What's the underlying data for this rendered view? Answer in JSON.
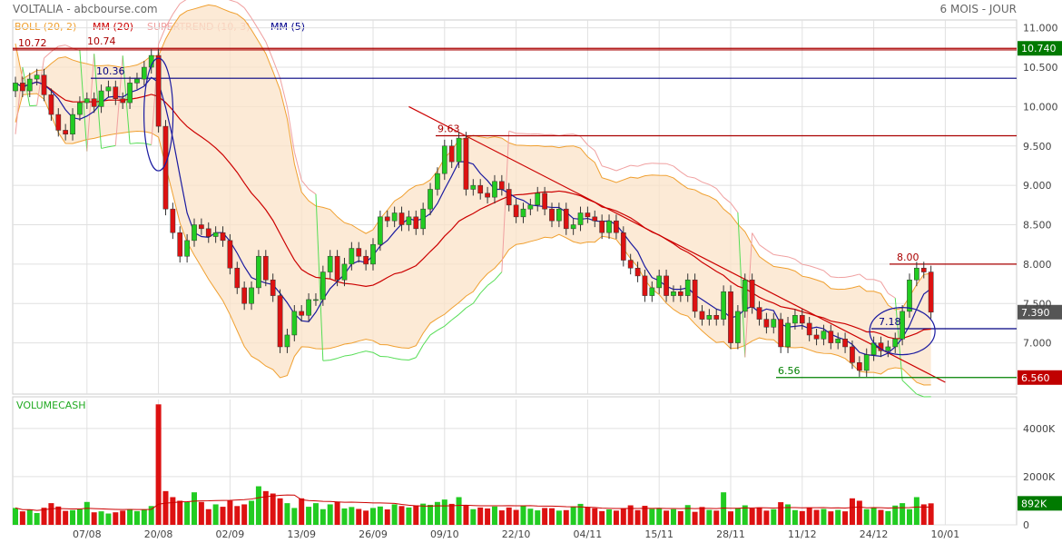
{
  "header": {
    "title": "VOLTALIA - abcbourse.com",
    "period": "6 MOIS - JOUR"
  },
  "legend": [
    {
      "label": "BOLL (20, 2)",
      "color": "#f0a030"
    },
    {
      "label": "MM (20)",
      "color": "#cc0000"
    },
    {
      "label": "SUPERTREND (10, 3)",
      "color": "#f0a0a0"
    },
    {
      "label": "MM (5)",
      "color": "#00008b"
    }
  ],
  "colors": {
    "up": "#22cc22",
    "down": "#dd1111",
    "boll_fill": "#fbe3c8",
    "boll_line": "#f0a030",
    "mm20": "#cc0000",
    "mm5": "#1a1aa0",
    "supertrend_down": "#f0a0a0",
    "supertrend_up": "#55dd55",
    "level_red": "#aa0000",
    "level_blue": "#000080",
    "level_green": "#008000",
    "grid": "#e0e0e0"
  },
  "chart_data": {
    "type": "candlestick",
    "price_axis": {
      "ylim": [
        6.35,
        11.1
      ],
      "ticks": [
        "11.000",
        "10.500",
        "10.000",
        "9.500",
        "9.000",
        "8.500",
        "8.000",
        "7.500",
        "7.000"
      ]
    },
    "volume_axis": {
      "title": "VOLUMECASH",
      "ylim": [
        0,
        5200
      ],
      "ticks": [
        "4000K",
        "2000K",
        "0"
      ]
    },
    "x_labels": [
      "07/08",
      "20/08",
      "02/09",
      "13/09",
      "26/09",
      "09/10",
      "22/10",
      "04/11",
      "15/11",
      "28/11",
      "11/12",
      "24/12",
      "10/01"
    ],
    "last_price_tag": "7.390",
    "last_volume_tag": "892K",
    "levels": [
      {
        "value": 10.72,
        "label": "10.72"
      },
      {
        "value": 10.74,
        "label": "10.74",
        "tag": "10.740"
      },
      {
        "value": 10.36,
        "label": "10.36"
      },
      {
        "value": 9.63,
        "label": "9.63"
      },
      {
        "value": 8.0,
        "label": "8.00"
      },
      {
        "value": 7.18,
        "label": "7.18"
      },
      {
        "value": 6.56,
        "label": "6.56",
        "tag": "6.560"
      }
    ],
    "closes": [
      10.3,
      10.2,
      10.35,
      10.4,
      10.15,
      9.9,
      9.7,
      9.65,
      9.9,
      10.05,
      10.1,
      10.0,
      10.2,
      10.25,
      10.1,
      10.05,
      10.3,
      10.35,
      10.5,
      10.65,
      9.75,
      8.7,
      8.4,
      8.1,
      8.3,
      8.5,
      8.45,
      8.35,
      8.4,
      8.3,
      7.95,
      7.7,
      7.5,
      7.7,
      8.1,
      7.8,
      7.6,
      6.95,
      7.1,
      7.4,
      7.35,
      7.55,
      7.55,
      7.9,
      8.1,
      7.8,
      8.0,
      8.2,
      8.1,
      8.0,
      8.25,
      8.6,
      8.55,
      8.65,
      8.5,
      8.6,
      8.45,
      8.7,
      8.95,
      9.15,
      9.5,
      9.3,
      9.6,
      8.95,
      9.0,
      8.9,
      8.85,
      9.05,
      8.95,
      8.75,
      8.6,
      8.7,
      8.75,
      8.9,
      8.7,
      8.55,
      8.7,
      8.45,
      8.5,
      8.65,
      8.6,
      8.55,
      8.4,
      8.55,
      8.4,
      8.05,
      7.95,
      7.85,
      7.6,
      7.7,
      7.85,
      7.6,
      7.65,
      7.6,
      7.8,
      7.4,
      7.3,
      7.35,
      7.3,
      7.65,
      7.0,
      7.4,
      7.8,
      7.45,
      7.3,
      7.2,
      7.3,
      6.95,
      7.25,
      7.35,
      7.25,
      7.1,
      7.05,
      7.15,
      7.0,
      7.05,
      6.95,
      6.75,
      6.65,
      6.85,
      7.0,
      6.9,
      6.95,
      7.05,
      7.4,
      7.8,
      7.95,
      7.9,
      7.39
    ],
    "volumes": [
      700,
      560,
      640,
      490,
      710,
      900,
      760,
      580,
      610,
      650,
      950,
      520,
      560,
      470,
      520,
      590,
      650,
      570,
      640,
      780,
      5000,
      1400,
      1150,
      1000,
      950,
      1350,
      950,
      650,
      850,
      750,
      1000,
      780,
      850,
      1000,
      1600,
      1400,
      1300,
      1100,
      900,
      700,
      1100,
      750,
      900,
      650,
      850,
      950,
      680,
      740,
      660,
      590,
      700,
      760,
      640,
      850,
      780,
      720,
      810,
      880,
      830,
      950,
      1050,
      870,
      1150,
      800,
      650,
      720,
      680,
      760,
      600,
      720,
      620,
      790,
      670,
      600,
      700,
      690,
      590,
      610,
      760,
      870,
      740,
      690,
      570,
      640,
      590,
      680,
      810,
      610,
      790,
      660,
      700,
      590,
      650,
      570,
      820,
      540,
      740,
      620,
      590,
      1350,
      560,
      700,
      810,
      680,
      720,
      590,
      650,
      940,
      850,
      610,
      570,
      700,
      620,
      660,
      560,
      620,
      560,
      1100,
      1000,
      650,
      700,
      620,
      570,
      800,
      900,
      650,
      1150,
      850,
      892
    ]
  }
}
